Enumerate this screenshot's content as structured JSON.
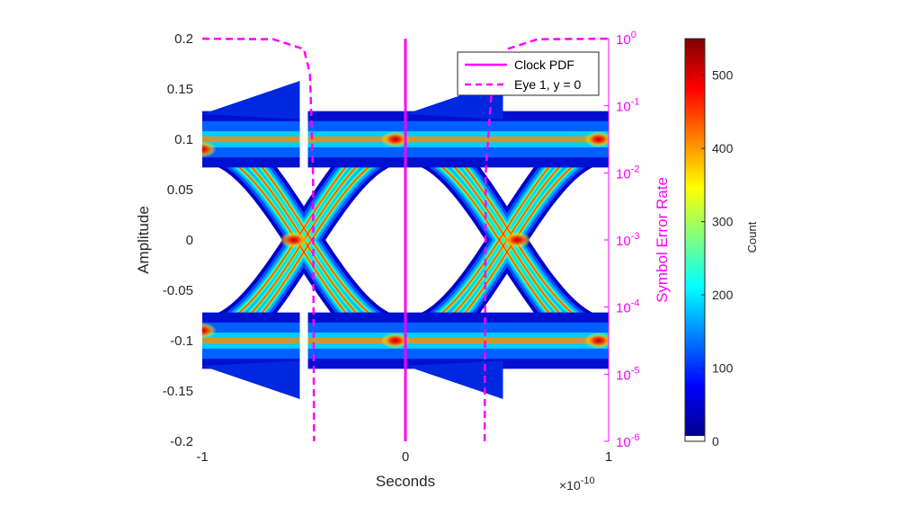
{
  "chart_data": {
    "type": "heatmap",
    "title": "",
    "xlabel": "Seconds",
    "x_exponent_label": "×10",
    "x_exponent_power": "-10",
    "x_range": [
      -1,
      1
    ],
    "x_ticks": [
      "-1",
      "0",
      "1"
    ],
    "ylabel": "Amplitude",
    "y_range": [
      -0.2,
      0.2
    ],
    "y_ticks": [
      "0.2",
      "0.15",
      "0.1",
      "0.05",
      "0",
      "-0.05",
      "-0.1",
      "-0.15",
      "-0.2"
    ],
    "y_right": {
      "label": "Symbol Error Rate",
      "scale": "log",
      "range_exponents": [
        -6,
        0
      ],
      "tick_exponents": [
        "0",
        "-1",
        "-2",
        "-3",
        "-4",
        "-5",
        "-6"
      ],
      "tick_base": "10",
      "color": "#ff00ff"
    },
    "colorbar": {
      "label": "Count",
      "range": [
        0,
        550
      ],
      "ticks": [
        "500",
        "400",
        "300",
        "200",
        "100",
        "0"
      ],
      "colormap": "jet"
    },
    "eye_levels": [
      0.1,
      -0.1
    ],
    "crossing_times": [
      -0.5,
      0.5
    ],
    "legend": {
      "position": "top-right",
      "entries": [
        {
          "label": "Clock PDF",
          "style": "solid",
          "color": "#ff00ff"
        },
        {
          "label": "Eye 1, y = 0",
          "style": "dashed",
          "color": "#ff00ff"
        }
      ]
    },
    "clock_pdf": {
      "x": 0
    },
    "eye1_ser_left": [
      {
        "x": -1.0,
        "ser": 1.0
      },
      {
        "x": -0.65,
        "ser": 0.98
      },
      {
        "x": -0.5,
        "ser": 0.7
      },
      {
        "x": -0.47,
        "ser": 0.3
      },
      {
        "x": -0.455,
        "ser": 0.01
      },
      {
        "x": -0.45,
        "ser": 1e-06
      }
    ],
    "eye1_ser_right": [
      {
        "x": 0.39,
        "ser": 1e-06
      },
      {
        "x": 0.395,
        "ser": 0.01
      },
      {
        "x": 0.43,
        "ser": 0.3
      },
      {
        "x": 0.5,
        "ser": 0.7
      },
      {
        "x": 0.65,
        "ser": 0.98
      },
      {
        "x": 1.0,
        "ser": 1.0
      }
    ]
  }
}
